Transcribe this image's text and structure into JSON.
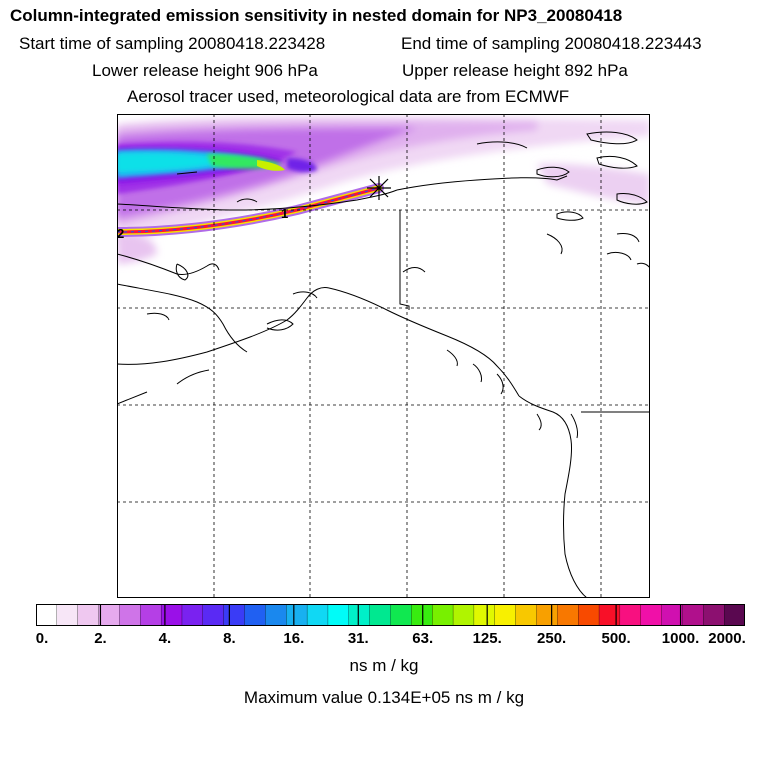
{
  "header": {
    "title": "Column-integrated emission sensitivity in nested domain for NP3_20080418",
    "start_time": "Start time of sampling 20080418.223428",
    "end_time": "End time of sampling 20080418.223443",
    "lower_release": "Lower release height  906 hPa",
    "upper_release": "Upper release height  892 hPa",
    "tracer_info": "Aerosol tracer used, meteorological data are from ECMWF"
  },
  "map": {
    "release_marker_symbol": "asterisk",
    "trajectory_labels": [
      "1",
      "2"
    ]
  },
  "colorbar": {
    "colors": [
      "#ffffff",
      "#f7e6f7",
      "#efc8f0",
      "#e6aaee",
      "#cf74e8",
      "#b53fe6",
      "#9a10e8",
      "#7a22f0",
      "#5a2af4",
      "#3a3cf6",
      "#2060f2",
      "#1a88ee",
      "#18b0f0",
      "#10d8f4",
      "#00fcf8",
      "#00f0c8",
      "#00e890",
      "#10e850",
      "#38ec10",
      "#78f000",
      "#b0f400",
      "#e0f800",
      "#f8f000",
      "#f8c800",
      "#f8a000",
      "#f87800",
      "#f84a00",
      "#f81028",
      "#f81080",
      "#f010a8",
      "#d010b0",
      "#b0108c",
      "#8c1070",
      "#5a0850"
    ],
    "tick_labels": [
      "0.",
      "2.",
      "4.",
      "8.",
      "16.",
      "31.",
      "63.",
      "125.",
      "250.",
      "500.",
      "1000.",
      "2000."
    ],
    "units": "ns m / kg"
  },
  "footer": {
    "max_value": "Maximum value  0.134E+05 ns m / kg"
  }
}
